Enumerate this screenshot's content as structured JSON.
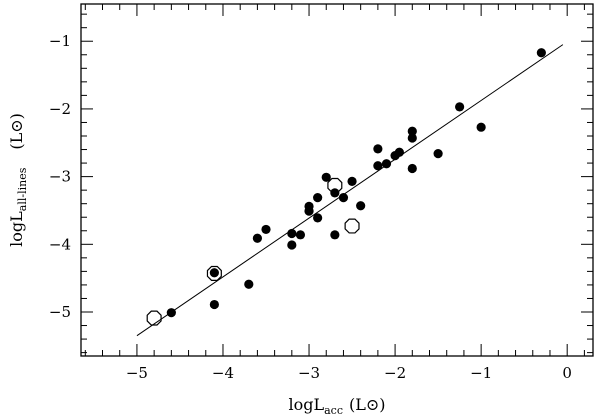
{
  "chart_data": {
    "type": "scatter",
    "title": "",
    "xlabel": {
      "main": "logL",
      "sub": "acc",
      "unit": "(L⊙)"
    },
    "ylabel": {
      "main": "logL",
      "sub": "all-lines",
      "unit": "(L⊙)"
    },
    "xlim": [
      -5.65,
      0.3
    ],
    "ylim": [
      -5.65,
      -0.45
    ],
    "x_ticks": [
      -5,
      -4,
      -3,
      -2,
      -1,
      0
    ],
    "y_ticks": [
      -5,
      -4,
      -3,
      -2,
      -1
    ],
    "x_tick_labels": [
      "−5",
      "−4",
      "−3",
      "−2",
      "−1",
      "0"
    ],
    "y_tick_labels": [
      "−5",
      "−4",
      "−3",
      "−2",
      "−1"
    ],
    "grid": false,
    "fit_line": {
      "x": [
        -5.0,
        -0.05
      ],
      "y": [
        -5.35,
        -1.05
      ]
    },
    "series": [
      {
        "marker": "filled-circle",
        "points": [
          [
            -0.3,
            -1.17
          ],
          [
            -1.25,
            -1.97
          ],
          [
            -1.0,
            -2.27
          ],
          [
            -1.8,
            -2.33
          ],
          [
            -1.8,
            -2.43
          ],
          [
            -1.5,
            -2.66
          ],
          [
            -2.2,
            -2.59
          ],
          [
            -2.0,
            -2.69
          ],
          [
            -1.95,
            -2.64
          ],
          [
            -2.1,
            -2.81
          ],
          [
            -2.2,
            -2.84
          ],
          [
            -1.8,
            -2.88
          ],
          [
            -2.8,
            -3.01
          ],
          [
            -2.5,
            -3.07
          ],
          [
            -2.7,
            -3.24
          ],
          [
            -2.6,
            -3.31
          ],
          [
            -2.9,
            -3.31
          ],
          [
            -3.0,
            -3.44
          ],
          [
            -3.0,
            -3.51
          ],
          [
            -2.4,
            -3.43
          ],
          [
            -2.9,
            -3.61
          ],
          [
            -3.2,
            -3.84
          ],
          [
            -3.1,
            -3.86
          ],
          [
            -2.7,
            -3.86
          ],
          [
            -3.5,
            -3.78
          ],
          [
            -3.6,
            -3.91
          ],
          [
            -3.2,
            -4.01
          ],
          [
            -4.1,
            -4.42
          ],
          [
            -3.7,
            -4.59
          ],
          [
            -4.1,
            -4.89
          ],
          [
            -4.6,
            -5.01
          ]
        ]
      },
      {
        "marker": "open-circle",
        "points": [
          [
            -2.7,
            -3.13
          ],
          [
            -2.5,
            -3.73
          ],
          [
            -4.1,
            -4.43
          ],
          [
            -4.8,
            -5.09
          ]
        ]
      }
    ]
  }
}
